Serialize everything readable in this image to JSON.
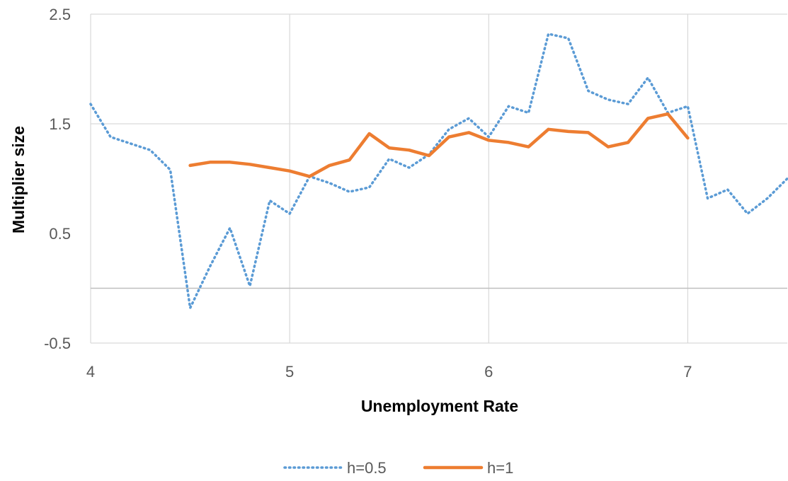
{
  "chart_data": {
    "type": "line",
    "title": "",
    "xlabel": "Unemployment Rate",
    "ylabel": "Multiplier size",
    "xlim": [
      4,
      7.5
    ],
    "ylim": [
      -0.5,
      2.5
    ],
    "x_ticks": [
      4,
      5,
      6,
      7
    ],
    "y_ticks": [
      -0.5,
      0.5,
      1.5,
      2.5
    ],
    "y_gridlines": [
      0,
      1.5,
      2.5
    ],
    "x_gridlines": [
      5,
      6,
      7
    ],
    "grid": true,
    "legend_position": "bottom",
    "series": [
      {
        "name": "h=0.5",
        "color": "#5B9BD5",
        "style": "dotted",
        "x": [
          4.0,
          4.1,
          4.2,
          4.3,
          4.4,
          4.5,
          4.6,
          4.7,
          4.8,
          4.9,
          5.0,
          5.1,
          5.2,
          5.3,
          5.4,
          5.5,
          5.6,
          5.7,
          5.8,
          5.9,
          6.0,
          6.1,
          6.2,
          6.3,
          6.4,
          6.5,
          6.6,
          6.7,
          6.8,
          6.9,
          7.0,
          7.1,
          7.2,
          7.3,
          7.4,
          7.5
        ],
        "values": [
          1.68,
          1.38,
          1.32,
          1.26,
          1.08,
          -0.18,
          0.2,
          0.55,
          0.02,
          0.8,
          0.68,
          1.02,
          0.96,
          0.88,
          0.92,
          1.18,
          1.1,
          1.22,
          1.45,
          1.55,
          1.38,
          1.66,
          1.6,
          2.32,
          2.28,
          1.8,
          1.72,
          1.68,
          1.92,
          1.6,
          1.66,
          0.82,
          0.9,
          0.68,
          0.82,
          1.0
        ]
      },
      {
        "name": "h=1",
        "color": "#ED7D31",
        "style": "solid",
        "x": [
          4.5,
          4.6,
          4.7,
          4.8,
          4.9,
          5.0,
          5.1,
          5.2,
          5.3,
          5.4,
          5.5,
          5.6,
          5.7,
          5.8,
          5.9,
          6.0,
          6.1,
          6.2,
          6.3,
          6.4,
          6.5,
          6.6,
          6.7,
          6.8,
          6.9,
          7.0
        ],
        "values": [
          1.12,
          1.15,
          1.15,
          1.13,
          1.1,
          1.07,
          1.02,
          1.12,
          1.17,
          1.41,
          1.28,
          1.26,
          1.21,
          1.38,
          1.42,
          1.35,
          1.33,
          1.29,
          1.45,
          1.43,
          1.42,
          1.29,
          1.33,
          1.55,
          1.59,
          1.37
        ]
      }
    ]
  }
}
